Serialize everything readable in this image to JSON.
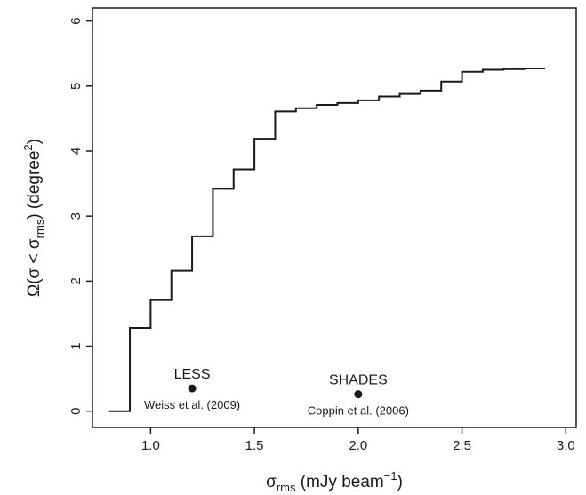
{
  "chart_data": {
    "type": "line",
    "style": "step",
    "xlabel": {
      "symbol": "σ",
      "sub": "rms",
      "text": " (mJy beam",
      "sup": "−1",
      "close": ")"
    },
    "ylabel": {
      "prefix": "Ω(σ < σ",
      "sub": "rms",
      "mid": ") (degree",
      "sup": "2",
      "close": ")"
    },
    "xlim": [
      0.72,
      3.05
    ],
    "ylim": [
      -0.25,
      6.2
    ],
    "xticks": [
      "1.0",
      "1.5",
      "2.0",
      "2.5",
      "3.0"
    ],
    "yticks": [
      "0",
      "1",
      "2",
      "3",
      "4",
      "5",
      "6"
    ],
    "grid": false,
    "series": [
      {
        "x": [
          0.8,
          0.9,
          1.0,
          1.1,
          1.2,
          1.3,
          1.4,
          1.5,
          1.6,
          1.7,
          1.8,
          1.9,
          2.0,
          2.1,
          2.2,
          2.3,
          2.4,
          2.5,
          2.6,
          2.7,
          2.8,
          2.9
        ],
        "y": [
          0.0,
          1.28,
          1.71,
          2.16,
          2.69,
          3.42,
          3.72,
          4.19,
          4.61,
          4.66,
          4.71,
          4.74,
          4.78,
          4.84,
          4.88,
          4.93,
          5.07,
          5.22,
          5.25,
          5.26,
          5.27,
          5.27
        ]
      }
    ],
    "annotations": [
      {
        "x": 1.2,
        "y": 0.35,
        "label": "LESS",
        "sublabel": "Weiss et al. (2009)"
      },
      {
        "x": 2.0,
        "y": 0.26,
        "label": "SHADES",
        "sublabel": "Coppin et al. (2006)"
      }
    ]
  }
}
